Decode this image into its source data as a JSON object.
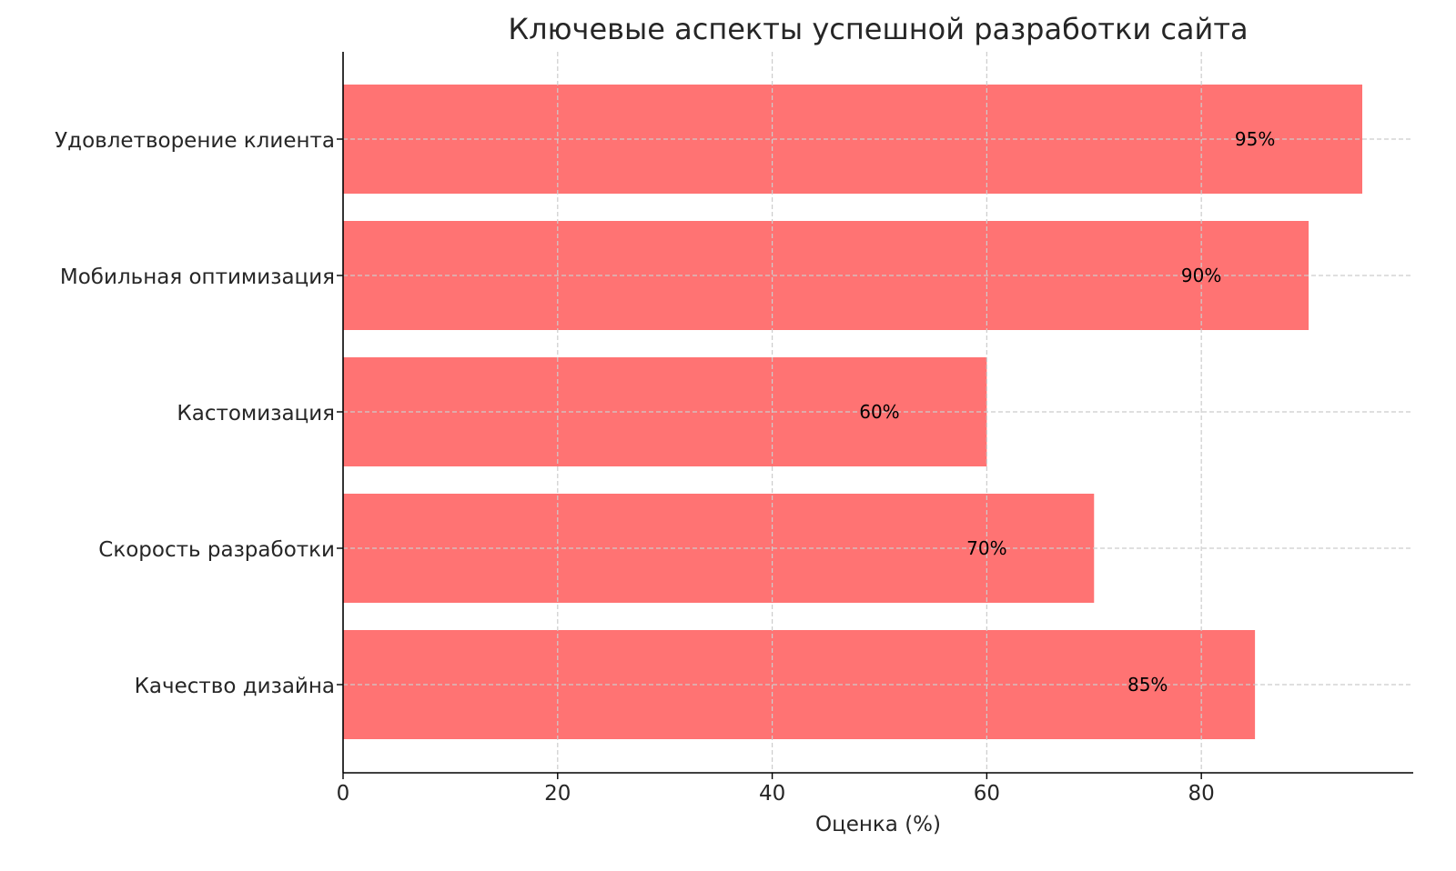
{
  "chart_data": {
    "type": "bar",
    "orientation": "horizontal",
    "title": "Ключевые аспекты успешной разработки сайта",
    "xlabel": "Оценка (%)",
    "ylabel": "",
    "categories": [
      "Качество дизайна",
      "Скорость разработки",
      "Кастомизация",
      "Мобильная оптимизация",
      "Удовлетворение клиента"
    ],
    "values": [
      85,
      70,
      60,
      90,
      95
    ],
    "data_labels": [
      "85%",
      "70%",
      "60%",
      "90%",
      "95%"
    ],
    "xlim": [
      0,
      99.75
    ],
    "xticks": [
      0,
      20,
      40,
      60,
      80
    ],
    "grid": true,
    "bar_color": "#ff7373",
    "grid_color": "#cccccc"
  }
}
